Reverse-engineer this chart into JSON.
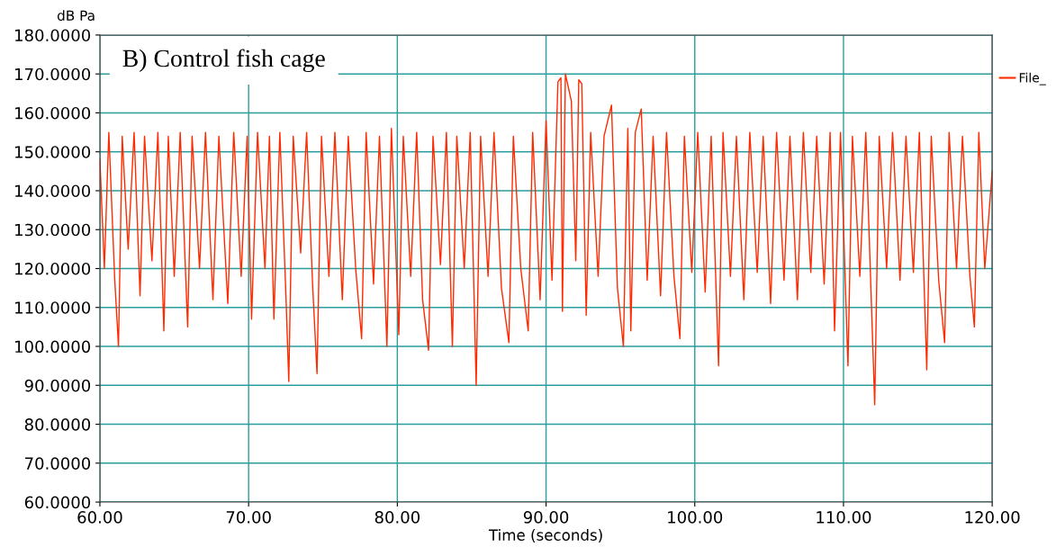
{
  "chart_data": {
    "type": "line",
    "ylabel": "dB Pa",
    "xlabel": "Time (seconds)",
    "annotations": [
      "B) Control fish cage"
    ],
    "xlim": [
      60,
      120
    ],
    "ylim": [
      60,
      180
    ],
    "xticks": [
      {
        "value": 60,
        "label": "60.00"
      },
      {
        "value": 70,
        "label": "70.00"
      },
      {
        "value": 80,
        "label": "80.00"
      },
      {
        "value": 90,
        "label": "90.00"
      },
      {
        "value": 100,
        "label": "100.00"
      },
      {
        "value": 110,
        "label": "110.00"
      },
      {
        "value": 120,
        "label": "120.00"
      }
    ],
    "yticks": [
      {
        "value": 60,
        "label": "60.0000"
      },
      {
        "value": 70,
        "label": "70.0000"
      },
      {
        "value": 80,
        "label": "80.0000"
      },
      {
        "value": 90,
        "label": "90.0000"
      },
      {
        "value": 100,
        "label": "100.0000"
      },
      {
        "value": 110,
        "label": "110.0000"
      },
      {
        "value": 120,
        "label": "120.0000"
      },
      {
        "value": 130,
        "label": "130.0000"
      },
      {
        "value": 140,
        "label": "140.0000"
      },
      {
        "value": 150,
        "label": "150.0000"
      },
      {
        "value": 160,
        "label": "160.0000"
      },
      {
        "value": 170,
        "label": "170.0000"
      },
      {
        "value": 180,
        "label": "180.0000"
      }
    ],
    "grid": true,
    "legend": "top right",
    "marker": "none",
    "line_style": "solid",
    "series": [
      {
        "name": "File_",
        "color": "#ff2a00",
        "x": [
          60.0,
          60.3,
          60.6,
          61.0,
          61.25,
          61.5,
          61.9,
          62.3,
          62.7,
          63.0,
          63.5,
          63.9,
          64.3,
          64.6,
          65.0,
          65.4,
          65.9,
          66.2,
          66.7,
          67.1,
          67.6,
          68.0,
          68.6,
          69.0,
          69.5,
          69.9,
          70.2,
          70.6,
          71.1,
          71.4,
          71.7,
          72.1,
          72.5,
          72.7,
          73.0,
          73.5,
          73.9,
          74.3,
          74.6,
          74.9,
          75.4,
          75.8,
          76.3,
          76.7,
          77.2,
          77.6,
          77.9,
          78.4,
          78.8,
          79.3,
          79.6,
          80.1,
          80.4,
          80.9,
          81.3,
          81.7,
          82.1,
          82.4,
          82.9,
          83.3,
          83.7,
          84.0,
          84.5,
          84.9,
          85.3,
          85.6,
          86.1,
          86.5,
          87.0,
          87.5,
          87.8,
          88.3,
          88.8,
          89.1,
          89.6,
          90.0,
          90.4,
          90.8,
          91.0,
          91.1,
          91.3,
          91.7,
          92.0,
          92.2,
          92.4,
          92.7,
          93.0,
          93.5,
          93.9,
          94.4,
          94.8,
          95.2,
          95.5,
          95.7,
          96.0,
          96.4,
          96.8,
          97.2,
          97.7,
          98.1,
          98.6,
          99.0,
          99.3,
          99.8,
          100.2,
          100.7,
          101.1,
          101.6,
          101.9,
          102.4,
          102.8,
          103.3,
          103.7,
          104.2,
          104.6,
          105.1,
          105.5,
          106.0,
          106.4,
          106.9,
          107.3,
          107.8,
          108.2,
          108.7,
          109.1,
          109.4,
          109.8,
          110.3,
          110.6,
          111.1,
          111.5,
          112.1,
          112.4,
          112.9,
          113.3,
          113.8,
          114.2,
          114.7,
          115.1,
          115.6,
          115.9,
          116.4,
          116.8,
          117.1,
          117.6,
          118.0,
          118.5,
          118.8,
          119.1,
          119.5,
          120.0
        ],
        "values": [
          148,
          120,
          155,
          117,
          100,
          154,
          125,
          155,
          113,
          154,
          122,
          155,
          104,
          154,
          118,
          155,
          105,
          154,
          120,
          155,
          112,
          154,
          111,
          155,
          118,
          154,
          107,
          155,
          120,
          154,
          107,
          155,
          114,
          91,
          154,
          124,
          155,
          116,
          93,
          154,
          118,
          155,
          112,
          154,
          120,
          102,
          155,
          116,
          154,
          100,
          156,
          103,
          154,
          118,
          155,
          112,
          99,
          154,
          121,
          155,
          100,
          154,
          120,
          155,
          90,
          154,
          118,
          155,
          115,
          101,
          154,
          120,
          104,
          155,
          112,
          158,
          117,
          168,
          169,
          109,
          170,
          163,
          122,
          168.5,
          167.5,
          108,
          155,
          118,
          154,
          162,
          115,
          100,
          156,
          104,
          155,
          161,
          117,
          154,
          113,
          155,
          118,
          102,
          154,
          119,
          155,
          114,
          154,
          95,
          155,
          118,
          154,
          112,
          155,
          119,
          154,
          111,
          155,
          117,
          154,
          112,
          155,
          119,
          154,
          116,
          155,
          104,
          155,
          95,
          154,
          118,
          155,
          85,
          154,
          120,
          155,
          117,
          154,
          119,
          155,
          94,
          154,
          117,
          101,
          155,
          120,
          154,
          118,
          105,
          155,
          120,
          145
        ]
      }
    ]
  }
}
